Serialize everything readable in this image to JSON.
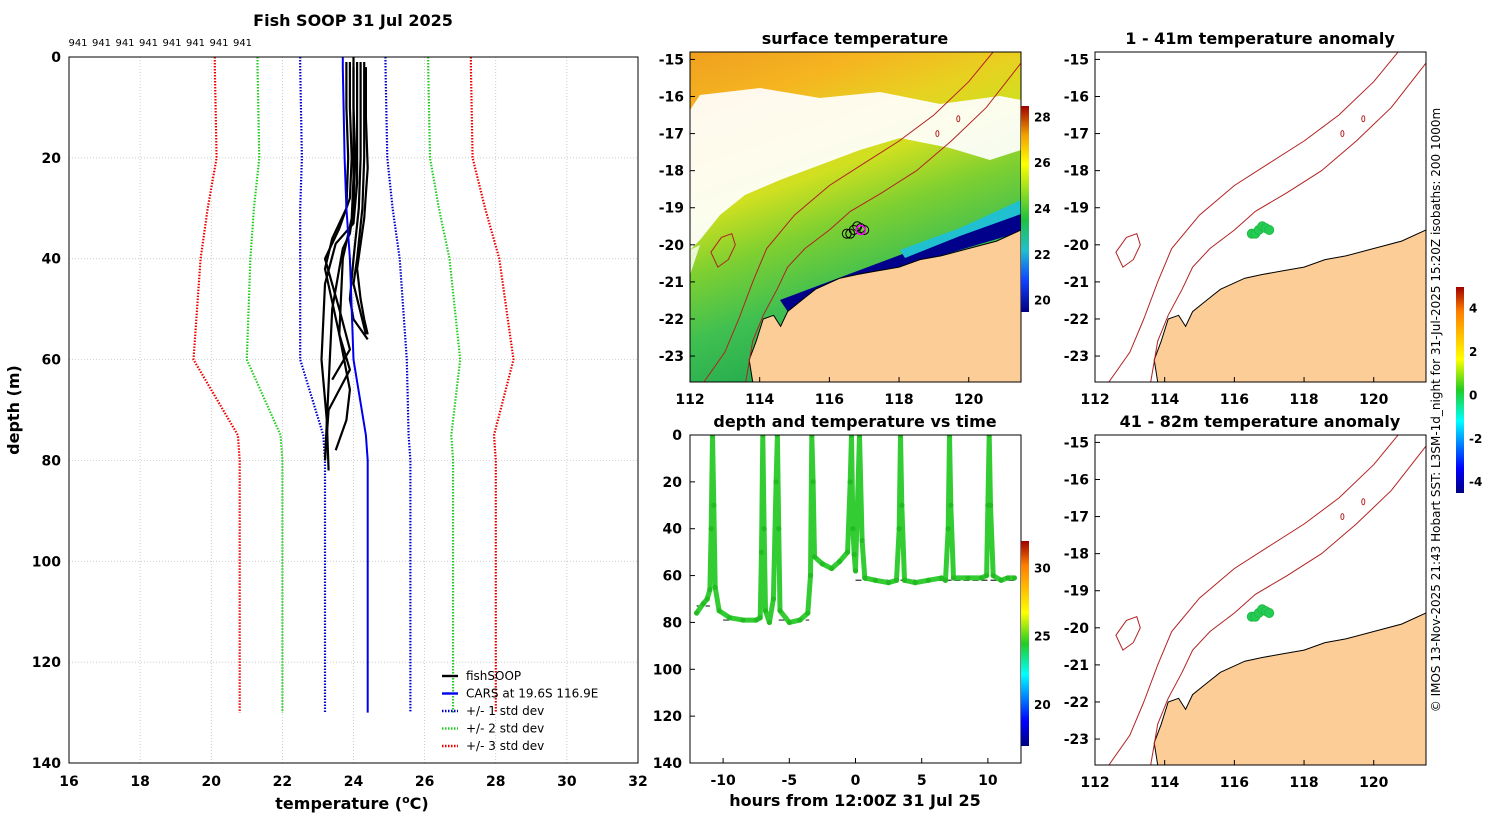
{
  "chart_data": [
    {
      "id": "profile",
      "type": "line",
      "title": "Fish SOOP 31 Jul 2025",
      "xlabel_main": "temperature (",
      "xlabel_sup": "o",
      "xlabel_tail": "C)",
      "ylabel": "depth (m)",
      "xlim": [
        16,
        32
      ],
      "ylim": [
        0,
        140
      ],
      "xticks": [
        16,
        18,
        20,
        22,
        24,
        26,
        28,
        30,
        32
      ],
      "yticks": [
        0,
        20,
        40,
        60,
        80,
        100,
        120,
        140
      ],
      "top_labels": [
        "941",
        "941",
        "941",
        "941",
        "941",
        "941",
        "941",
        "941"
      ],
      "depths": [
        0,
        2,
        20,
        30,
        40,
        60,
        75,
        80,
        130
      ],
      "cars_temp": [
        23.7,
        23.7,
        23.75,
        23.8,
        23.9,
        24.0,
        24.35,
        24.4,
        24.4
      ],
      "std_dev": [
        1.2,
        1.2,
        1.2,
        1.3,
        1.4,
        1.5,
        1.2,
        1.2,
        1.2
      ],
      "fish_profiles": [
        {
          "t": [
            24.0,
            24.0,
            24.05,
            24.0,
            23.9,
            23.7,
            23.4,
            23.3,
            23.2
          ],
          "d": [
            0,
            10,
            20,
            30,
            35,
            38,
            50,
            65,
            80
          ]
        },
        {
          "t": [
            24.1,
            24.1,
            24.1,
            24.0,
            23.5,
            23.2,
            23.1,
            23.25,
            23.3
          ],
          "d": [
            1,
            12,
            25,
            33,
            37,
            45,
            60,
            72,
            82
          ]
        },
        {
          "t": [
            24.2,
            24.2,
            24.2,
            24.15,
            24.0,
            23.9,
            24.0,
            24.4
          ],
          "d": [
            1,
            10,
            20,
            30,
            40,
            48,
            52,
            56
          ]
        },
        {
          "t": [
            24.3,
            24.3,
            24.3,
            24.25,
            24.1,
            24.0,
            24.35
          ],
          "d": [
            1,
            10,
            20,
            30,
            40,
            45,
            55
          ]
        },
        {
          "t": [
            23.9,
            23.9,
            23.95,
            23.9,
            23.6,
            23.2,
            23.6,
            23.9,
            23.4
          ],
          "d": [
            1,
            10,
            20,
            28,
            34,
            40,
            50,
            58,
            64
          ]
        },
        {
          "t": [
            24.35,
            24.35,
            24.4,
            24.3,
            24.1,
            24.2,
            24.3,
            24.4
          ],
          "d": [
            2,
            12,
            22,
            32,
            42,
            48,
            52,
            55
          ]
        },
        {
          "t": [
            23.8,
            23.8,
            23.85,
            23.8,
            23.4,
            23.2,
            23.6,
            23.9,
            23.3,
            23.2
          ],
          "d": [
            1,
            10,
            20,
            30,
            36,
            42,
            55,
            62,
            70,
            80
          ]
        },
        {
          "t": [
            24.0,
            24.0,
            24.0,
            23.95,
            23.7,
            23.6,
            23.9,
            23.8,
            23.5
          ],
          "d": [
            2,
            12,
            24,
            32,
            40,
            55,
            66,
            72,
            78
          ]
        }
      ],
      "legend": [
        {
          "label": "fishSOOP",
          "color": "#000000"
        },
        {
          "label": "CARS at 19.6S 116.9E",
          "color": "#0000ee"
        },
        {
          "label": "+/- 1 std dev",
          "color": "#0000cc"
        },
        {
          "label": "+/- 2 std dev",
          "color": "#22cc22"
        },
        {
          "label": "+/- 3 std dev",
          "color": "#ee0000"
        }
      ]
    },
    {
      "id": "sst",
      "type": "heatmap",
      "title": "surface temperature",
      "xlim": [
        112,
        121.5
      ],
      "ylim": [
        -23.7,
        -14.8
      ],
      "xticks": [
        112,
        114,
        116,
        118,
        120
      ],
      "yticks": [
        -15,
        -16,
        -17,
        -18,
        -19,
        -20,
        -21,
        -22,
        -23
      ],
      "colorbar_ticks": [
        28,
        26,
        24,
        22,
        20
      ],
      "colorbar_range": [
        19.5,
        28.5
      ]
    },
    {
      "id": "timeseries",
      "type": "scatter",
      "title": "depth and temperature vs time",
      "xlabel": "hours from 12:00Z 31 Jul 25",
      "xlim": [
        -12.5,
        12.5
      ],
      "ylim": [
        0,
        140
      ],
      "xticks": [
        -10,
        -5,
        0,
        5,
        10
      ],
      "yticks": [
        0,
        20,
        40,
        60,
        80,
        100,
        120,
        140
      ],
      "colorbar_ticks": [
        30,
        25,
        20
      ],
      "colorbar_range": [
        17,
        32
      ],
      "trace": [
        [
          -12.0,
          76
        ],
        [
          -11.5,
          72
        ],
        [
          -11.2,
          70
        ],
        [
          -11.0,
          66
        ],
        [
          -10.9,
          40
        ],
        [
          -10.8,
          0
        ],
        [
          -10.7,
          30
        ],
        [
          -10.6,
          65
        ],
        [
          -10.3,
          75
        ],
        [
          -9.5,
          78
        ],
        [
          -8.5,
          79
        ],
        [
          -7.5,
          79
        ],
        [
          -7.2,
          78
        ],
        [
          -7.1,
          50
        ],
        [
          -7.0,
          0
        ],
        [
          -6.9,
          40
        ],
        [
          -6.8,
          75
        ],
        [
          -6.5,
          80
        ],
        [
          -6.2,
          70
        ],
        [
          -6.0,
          20
        ],
        [
          -5.9,
          0
        ],
        [
          -5.8,
          40
        ],
        [
          -5.7,
          75
        ],
        [
          -5.0,
          80
        ],
        [
          -4.2,
          79
        ],
        [
          -3.6,
          76
        ],
        [
          -3.4,
          60
        ],
        [
          -3.3,
          0
        ],
        [
          -3.2,
          20
        ],
        [
          -3.1,
          52
        ],
        [
          -2.5,
          55
        ],
        [
          -1.8,
          57
        ],
        [
          -1.2,
          54
        ],
        [
          -0.6,
          50
        ],
        [
          -0.4,
          20
        ],
        [
          -0.3,
          0
        ],
        [
          -0.2,
          40
        ],
        [
          -0.1,
          51
        ],
        [
          0.0,
          58
        ],
        [
          0.3,
          0
        ],
        [
          0.5,
          45
        ],
        [
          0.7,
          61
        ],
        [
          1.5,
          62
        ],
        [
          2.5,
          63
        ],
        [
          3.1,
          62
        ],
        [
          3.3,
          40
        ],
        [
          3.4,
          0
        ],
        [
          3.5,
          30
        ],
        [
          3.7,
          62
        ],
        [
          4.5,
          63
        ],
        [
          5.5,
          62
        ],
        [
          6.5,
          61
        ],
        [
          6.8,
          62
        ],
        [
          7.0,
          40
        ],
        [
          7.1,
          0
        ],
        [
          7.2,
          30
        ],
        [
          7.4,
          61
        ],
        [
          8.5,
          61
        ],
        [
          9.5,
          61
        ],
        [
          9.9,
          60
        ],
        [
          10.0,
          30
        ],
        [
          10.1,
          0
        ],
        [
          10.2,
          30
        ],
        [
          10.4,
          60
        ],
        [
          11.0,
          62
        ],
        [
          11.5,
          61
        ],
        [
          12.0,
          61
        ]
      ],
      "bottom_segments": [
        {
          "t0": -12.0,
          "t1": -11.0,
          "d": 73
        },
        {
          "t0": -10.0,
          "t1": -7.3,
          "d": 79
        },
        {
          "t0": -5.8,
          "t1": -3.5,
          "d": 79
        },
        {
          "t0": 0.0,
          "t1": 12.0,
          "d": 62
        }
      ]
    },
    {
      "id": "anom1",
      "type": "scatter",
      "title": "1 - 41m temperature anomaly",
      "xlim": [
        112,
        121.5
      ],
      "ylim": [
        -23.7,
        -14.8
      ],
      "xticks": [
        112,
        114,
        116,
        118,
        120
      ],
      "yticks": [
        -15,
        -16,
        -17,
        -18,
        -19,
        -20,
        -21,
        -22,
        -23
      ]
    },
    {
      "id": "anom2",
      "type": "scatter",
      "title": "41 - 82m temperature anomaly",
      "xlim": [
        112,
        121.5
      ],
      "ylim": [
        -23.7,
        -14.8
      ],
      "xticks": [
        112,
        114,
        116,
        118,
        120
      ],
      "yticks": [
        -15,
        -16,
        -17,
        -18,
        -19,
        -20,
        -21,
        -22,
        -23
      ]
    },
    {
      "id": "anomcb",
      "type": "heatmap",
      "colorbar_ticks": [
        4,
        2,
        0,
        -2,
        -4
      ],
      "colorbar_range": [
        -4.5,
        5
      ]
    }
  ],
  "fish_positions": [
    {
      "lon": 116.5,
      "lat": -19.7
    },
    {
      "lon": 116.6,
      "lat": -19.7
    },
    {
      "lon": 116.7,
      "lat": -19.6
    },
    {
      "lon": 116.8,
      "lat": -19.5
    },
    {
      "lon": 116.9,
      "lat": -19.55
    },
    {
      "lon": 117.0,
      "lat": -19.6
    }
  ],
  "latest_position": {
    "lon": 116.9,
    "lat": -19.6
  },
  "credit": "© IMOS 13-Nov-2025 21:43 Hobart SST: L3SM-1d_night for 31-Jul-2025 15:20Z isobaths: 200  1000m",
  "colors": {
    "land": "#fccd97",
    "isobath": "#b22222",
    "cold": "#00008b"
  }
}
